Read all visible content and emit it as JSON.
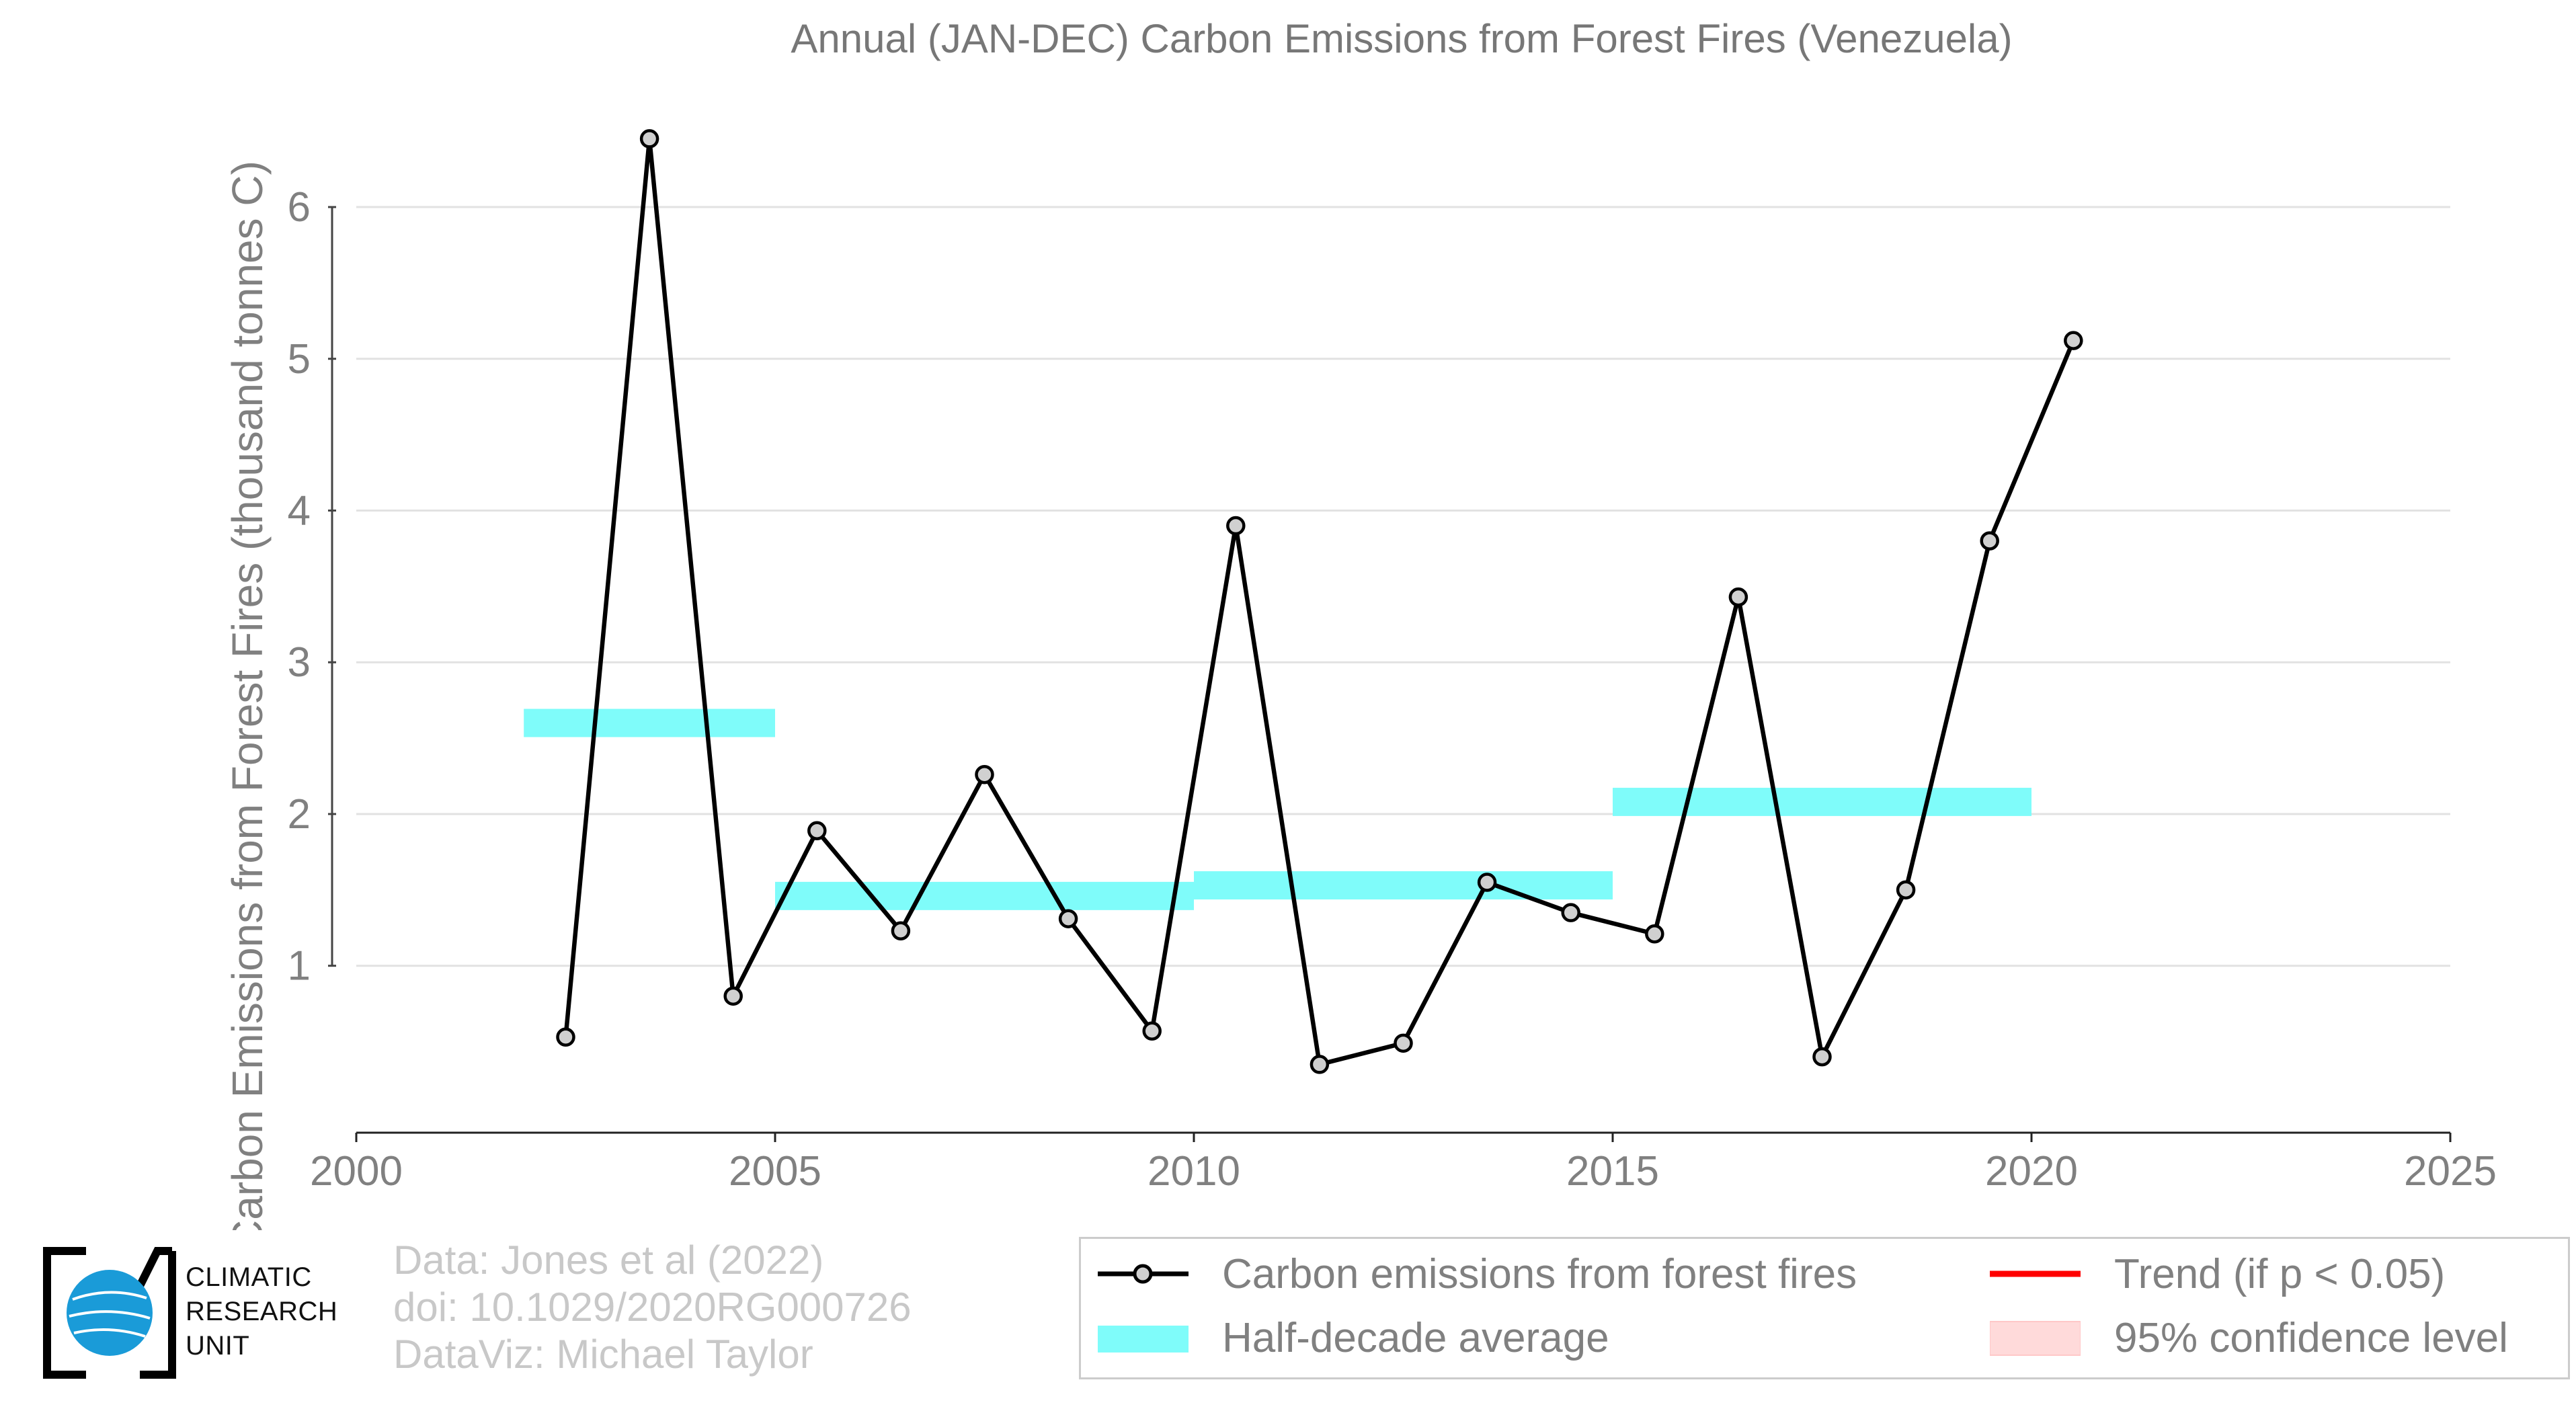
{
  "chart_data": {
    "type": "line",
    "title": "Annual (JAN-DEC) Carbon Emissions from Forest Fires (Venezuela)",
    "xlabel": "",
    "ylabel": "Carbon Emissions from Forest Fires (thousand tonnes C)",
    "xlim": [
      2000,
      2025
    ],
    "ylim": [
      -0.1,
      6.7
    ],
    "xticks": [
      2000,
      2005,
      2010,
      2015,
      2020,
      2025
    ],
    "yticks": [
      1,
      2,
      3,
      4,
      5,
      6
    ],
    "grid": "horizontal",
    "legend_position": "bottom",
    "series": [
      {
        "name": "Carbon emissions from forest fires",
        "type": "line",
        "x": [
          2002.5,
          2003.5,
          2004.5,
          2005.5,
          2006.5,
          2007.5,
          2008.5,
          2009.5,
          2010.5,
          2011.5,
          2012.5,
          2013.5,
          2014.5,
          2015.5,
          2016.5,
          2017.5,
          2018.5,
          2019.5,
          2020.5
        ],
        "y": [
          0.53,
          6.45,
          0.8,
          1.89,
          1.23,
          2.26,
          1.31,
          0.57,
          3.9,
          0.35,
          0.49,
          1.55,
          1.35,
          1.21,
          3.43,
          0.4,
          1.5,
          3.8,
          5.12
        ],
        "color": "#000000"
      },
      {
        "name": "Half-decade average",
        "type": "step-band",
        "segments": [
          {
            "x0": 2002,
            "x1": 2005,
            "y": 2.6
          },
          {
            "x0": 2005,
            "x1": 2010,
            "y": 1.46
          },
          {
            "x0": 2010,
            "x1": 2015,
            "y": 1.53
          },
          {
            "x0": 2015,
            "x1": 2020,
            "y": 2.08
          }
        ],
        "color": "#7ffcfa"
      },
      {
        "name": "Trend (if p < 0.05)",
        "type": "line",
        "color": "#ff0000"
      },
      {
        "name": "95% confidence level",
        "type": "band",
        "color": "#ffdada"
      }
    ]
  },
  "logo": {
    "lines": [
      "CLIMATIC",
      "RESEARCH",
      "UNIT"
    ],
    "globe_color": "#1a9bd8"
  },
  "credits": {
    "line1": "Data: Jones et al (2022)",
    "line2": "doi: 10.1029/2020RG000726",
    "line3": "DataViz: Michael Taylor"
  }
}
